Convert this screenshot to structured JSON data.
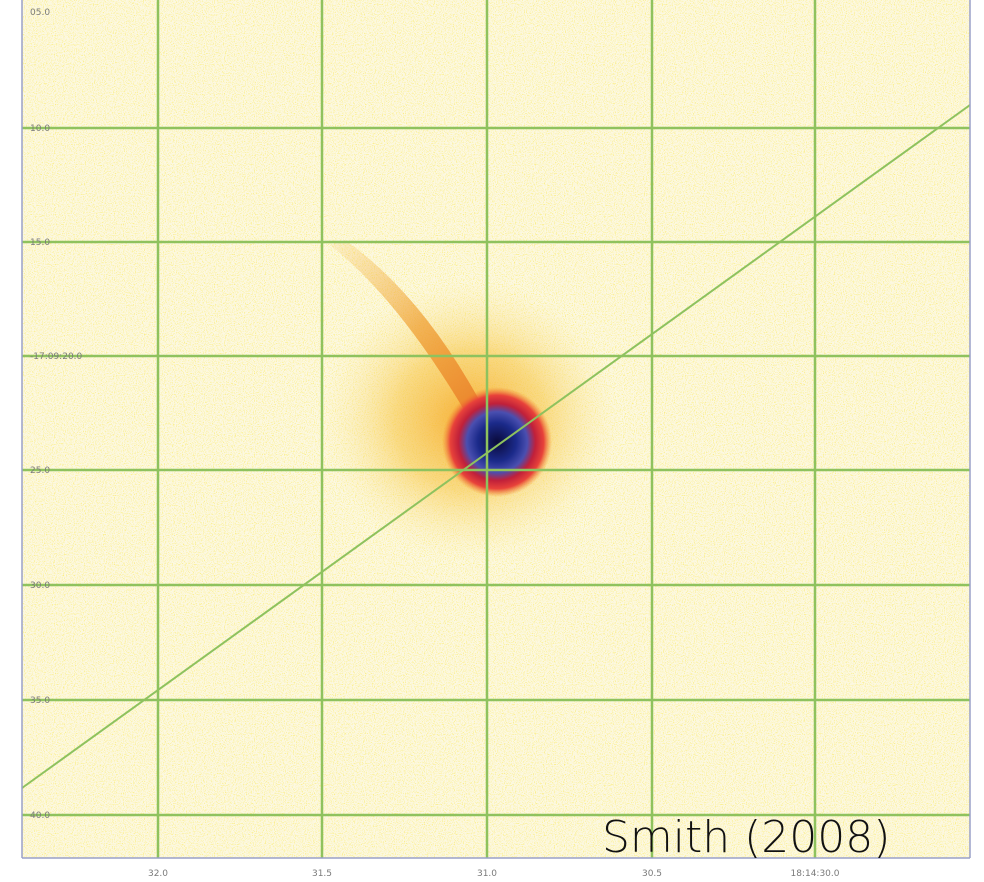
{
  "image": {
    "y_labels": [
      "05.0",
      "10.0",
      "15.0",
      "-17:09:20.0",
      "25.0",
      "30.0",
      "35.0",
      "40.0"
    ],
    "x_labels": [
      "32.0",
      "31.5",
      "31.0",
      "30.5",
      "18:14:30.0"
    ],
    "credit": "Smith (2008)"
  }
}
